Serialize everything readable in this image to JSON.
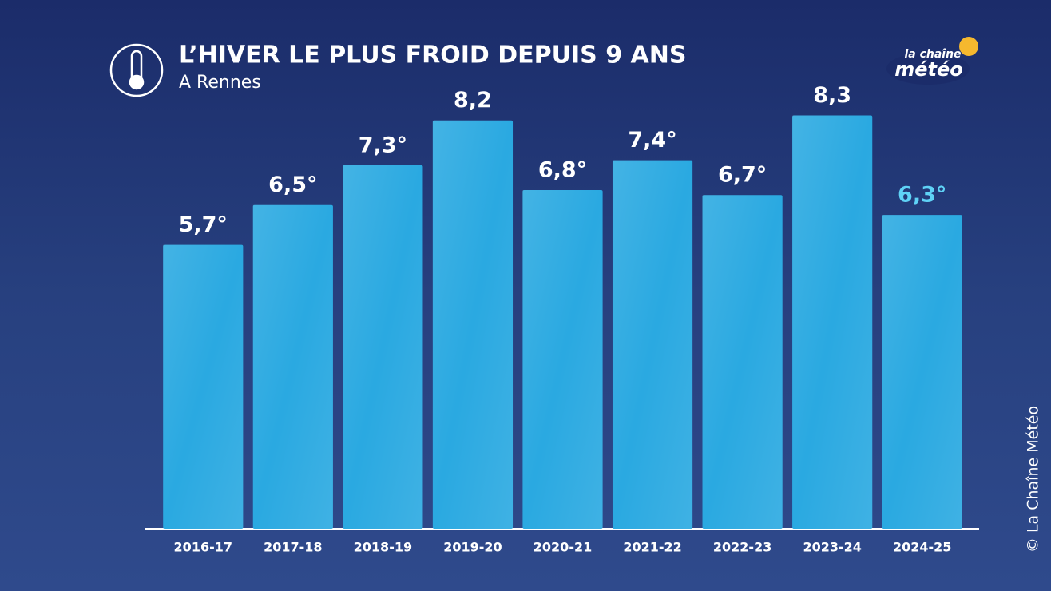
{
  "chart_data": {
    "type": "bar",
    "title": "L’HIVER LE PLUS FROID DEPUIS 9 ANS",
    "subtitle": "A Rennes",
    "categories": [
      "2016-17",
      "2017-18",
      "2018-19",
      "2019-20",
      "2020-21",
      "2021-22",
      "2022-23",
      "2023-24",
      "2024-25"
    ],
    "values": [
      5.7,
      6.5,
      7.3,
      8.2,
      6.8,
      7.4,
      6.7,
      8.3,
      6.3
    ],
    "value_labels": [
      "5,7°",
      "6,5°",
      "7,3°",
      "8,2",
      "6,8°",
      "7,4°",
      "6,7°",
      "8,3",
      "6,3°"
    ],
    "value_label_colors": [
      "#ffffff",
      "#ffffff",
      "#ffffff",
      "#ffffff",
      "#ffffff",
      "#ffffff",
      "#ffffff",
      "#ffffff",
      "#5fd2f6"
    ],
    "color": "#2aa9e1",
    "ylim": [
      0,
      8.5
    ],
    "logo": {
      "line1": "la chaîne",
      "line2": "météo"
    },
    "credit": "© La Chaîne Météo"
  }
}
